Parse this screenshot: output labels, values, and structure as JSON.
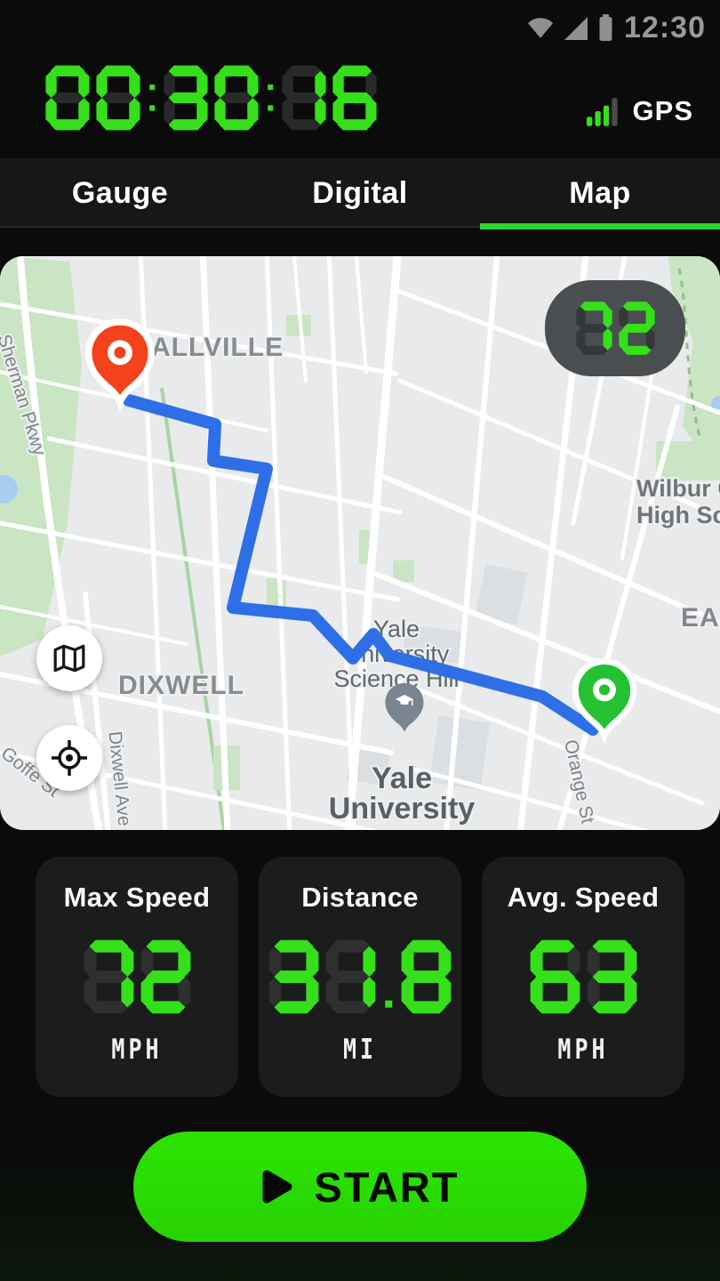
{
  "status_bar": {
    "time": "12:30"
  },
  "timer": {
    "value": "00:30:16"
  },
  "gps": {
    "label": "GPS",
    "bars_lit": 3,
    "bars_total": 4
  },
  "tabs": [
    {
      "label": "Gauge",
      "active": false
    },
    {
      "label": "Digital",
      "active": false
    },
    {
      "label": "Map",
      "active": true
    }
  ],
  "map": {
    "speed_badge": {
      "value": "72"
    },
    "labels": {
      "neighborhood_1": "ALLVILLE",
      "neighborhood_2": "DIXWELL",
      "neighborhood_3": "EAS",
      "school_line1": "Wilbur C",
      "school_line2": "High Sc",
      "poi_line1": "Yale",
      "poi_line2": "University",
      "poi_line3": "Science Hill",
      "university_line1": "Yale",
      "university_line2": "University",
      "street_1": "Sherman Pkwy",
      "street_2": "Dixwell Ave",
      "street_3": "Orange St",
      "street_4": "Goffe St"
    }
  },
  "stats": [
    {
      "title": "Max Speed",
      "value": "72",
      "unit": "MPH"
    },
    {
      "title": "Distance",
      "value": "31.8",
      "unit": "MI"
    },
    {
      "title": "Avg. Speed",
      "value": "63",
      "unit": "MPH"
    }
  ],
  "start_button": {
    "label": "START"
  },
  "colors": {
    "accent_green": "#35df1a",
    "underline_green": "#2dd42d",
    "button_green": "#2ae202",
    "route_blue": "#2e6fe8",
    "pin_red": "#f3421c",
    "pin_green": "#24c233",
    "ghost_dark": "#272a28",
    "ghost_badge": "#34383a",
    "ghost_card": "#2d302e"
  }
}
